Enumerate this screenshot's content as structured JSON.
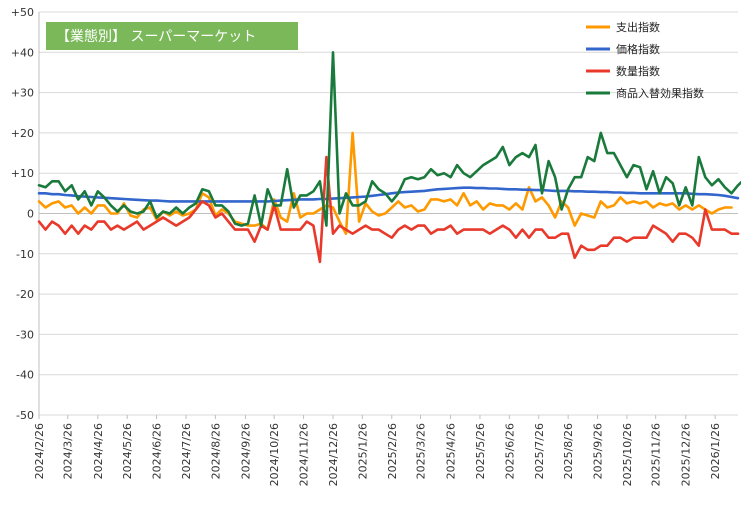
{
  "chart_data": {
    "type": "line",
    "title": "【業態別】 スーパーマーケット",
    "xlabel": "",
    "ylabel": "",
    "ylim": [
      -50,
      50
    ],
    "y_ticks": [
      "-50",
      "-40",
      "-30",
      "-20",
      "-10",
      "0",
      "+10",
      "+20",
      "+30",
      "+40",
      "+50"
    ],
    "x_tick_labels": [
      "2024/2/26",
      "2024/3/26",
      "2024/4/26",
      "2024/5/26",
      "2024/6/26",
      "2024/7/26",
      "2024/8/26",
      "2024/9/26",
      "2024/10/26",
      "2024/11/26",
      "2024/12/26",
      "2025/1/26",
      "2025/2/26",
      "2025/3/26",
      "2025/4/26",
      "2025/5/26",
      "2025/6/26",
      "2025/7/26",
      "2025/8/26",
      "2025/9/26",
      "2025/10/26",
      "2025/11/26",
      "2025/12/26",
      "2026/1/26"
    ],
    "x_tick_positions": [
      0,
      4.4,
      9,
      13.5,
      18,
      22.5,
      27,
      31.6,
      36,
      40.5,
      45,
      49.5,
      54,
      58.4,
      63,
      67.5,
      72,
      76.5,
      81,
      85.5,
      90,
      94.4,
      99,
      103.5
    ],
    "x_max": 107,
    "grid": true,
    "legend_position": "top-right",
    "series": [
      {
        "name": "支出指数",
        "color": "#ff9900",
        "values": [
          3,
          1.5,
          2.5,
          3,
          1.5,
          2,
          0,
          1.5,
          0,
          2,
          2,
          0,
          0,
          2.5,
          -0.5,
          -1,
          1,
          1.5,
          -1.5,
          0.5,
          -0.5,
          0.5,
          -0.5,
          0,
          1,
          5,
          4,
          -0.5,
          1,
          0,
          -2,
          -2.5,
          -3,
          -3,
          -2.5,
          -4,
          3.5,
          -1,
          -2,
          5,
          -1,
          0,
          0,
          1,
          2,
          1.5,
          -2,
          -5,
          20,
          -2,
          2.5,
          0.5,
          -0.5,
          0,
          1.5,
          3,
          1.5,
          2,
          0.5,
          1,
          3.5,
          3.5,
          3,
          3.5,
          2,
          5,
          2,
          3,
          1,
          2.5,
          2,
          2,
          1,
          2.5,
          1,
          6.5,
          3,
          4,
          2,
          -1,
          3,
          1.5,
          -3,
          0,
          -0.5,
          -1,
          3,
          1.5,
          2,
          4,
          2.5,
          3,
          2.5,
          3,
          1.5,
          2.5,
          2,
          2.5,
          1,
          2,
          1,
          2,
          1,
          0,
          1,
          1.5,
          1.5
        ]
      },
      {
        "name": "価格指数",
        "color": "#3366cc",
        "values": [
          5,
          5,
          4.8,
          4.8,
          4.6,
          4.5,
          4.3,
          4.2,
          4.1,
          4,
          3.9,
          3.8,
          3.7,
          3.6,
          3.5,
          3.4,
          3.3,
          3.2,
          3.2,
          3.1,
          3,
          3,
          3,
          3,
          3,
          3,
          3,
          3,
          3,
          3,
          3,
          3,
          3,
          3,
          3,
          3,
          3.1,
          3.2,
          3.3,
          3.4,
          3.5,
          3.5,
          3.5,
          3.6,
          3.6,
          3.7,
          3.8,
          3.9,
          4,
          4.1,
          4.2,
          4.4,
          4.6,
          4.8,
          5,
          5.2,
          5.3,
          5.4,
          5.5,
          5.6,
          5.8,
          6,
          6.1,
          6.2,
          6.3,
          6.4,
          6.4,
          6.3,
          6.3,
          6.2,
          6.2,
          6.1,
          6,
          6,
          5.9,
          5.9,
          5.8,
          5.8,
          5.7,
          5.6,
          5.6,
          5.6,
          5.5,
          5.5,
          5.4,
          5.4,
          5.3,
          5.3,
          5.2,
          5.2,
          5.1,
          5.1,
          5,
          5,
          5,
          5,
          5,
          5,
          5,
          5,
          4.9,
          4.8,
          4.8,
          4.7,
          4.6,
          4.4,
          4.1,
          3.8
        ]
      },
      {
        "name": "数量指数",
        "color": "#e8392b",
        "values": [
          -2,
          -4,
          -2,
          -3,
          -5,
          -3,
          -5,
          -3,
          -4,
          -2,
          -2,
          -4,
          -3,
          -4,
          -3,
          -2,
          -4,
          -3,
          -2,
          -1,
          -2,
          -3,
          -2,
          -1,
          1,
          3,
          2,
          -1,
          0,
          -2,
          -4,
          -4,
          -4,
          -7,
          -3,
          -4,
          2,
          -4,
          -4,
          -4,
          -4,
          -2,
          -3,
          -12,
          14,
          -5,
          -3,
          -4,
          -5,
          -4,
          -3,
          -4,
          -4,
          -5,
          -6,
          -4,
          -3,
          -4,
          -3,
          -3,
          -5,
          -4,
          -4,
          -3,
          -5,
          -4,
          -4,
          -4,
          -4,
          -5,
          -4,
          -3,
          -4,
          -6,
          -4,
          -6,
          -4,
          -4,
          -6,
          -6,
          -5,
          -5,
          -11,
          -8,
          -9,
          -9,
          -8,
          -8,
          -6,
          -6,
          -7,
          -6,
          -6,
          -6,
          -3,
          -4,
          -5,
          -7,
          -5,
          -5,
          -6,
          -8,
          1,
          -4,
          -4,
          -4,
          -5,
          -5
        ]
      },
      {
        "name": "商品入替効果指数",
        "color": "#1a7a3c",
        "values": [
          7,
          6.5,
          8,
          8,
          5.5,
          7,
          3.5,
          5.5,
          2,
          5.5,
          4,
          2,
          0.5,
          2,
          0.5,
          0,
          0.5,
          3,
          -1,
          0.5,
          0,
          1.5,
          0,
          1.5,
          2.5,
          6,
          5.5,
          2,
          2,
          0.5,
          -2.5,
          -3,
          -2.5,
          4.5,
          -3,
          6,
          2,
          2,
          11,
          1.5,
          4.5,
          4.5,
          5.5,
          8,
          -3,
          40,
          0,
          5,
          2,
          2,
          3,
          8,
          6,
          5,
          3,
          5,
          8.5,
          9,
          8.5,
          9,
          11,
          9.5,
          10,
          9,
          12,
          10,
          9,
          10.5,
          12,
          13,
          14,
          16.5,
          12,
          14,
          15,
          14,
          17,
          5,
          13,
          9,
          1,
          6,
          9,
          9,
          14,
          13,
          20,
          15,
          15,
          12,
          9,
          12,
          11.5,
          6,
          10.5,
          5,
          9,
          7.5,
          2,
          6.5,
          2,
          14,
          9,
          7,
          8.5,
          6.5,
          5,
          7,
          8.5
        ]
      }
    ]
  }
}
